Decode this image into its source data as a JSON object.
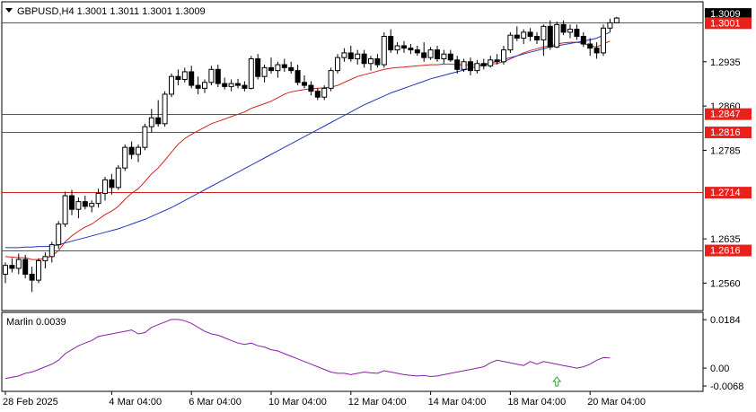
{
  "chart_data": {
    "type": "candlestick",
    "symbol_header": "GBPUSD,H4  1.3001  1.3011  1.3001  1.3009",
    "price_axis": {
      "range": [
        1.2515,
        1.3035
      ],
      "ticks": [
        "1.2935",
        "1.2860",
        "1.2785",
        "1.2635",
        "1.2560"
      ],
      "tick_values": [
        1.2935,
        1.286,
        1.2785,
        1.2635,
        1.256
      ],
      "current_price_label": "1.3009",
      "current_price": 1.3009
    },
    "levels": [
      {
        "label": "1.3001",
        "value": 1.3001
      },
      {
        "label": "1.2847",
        "value": 1.2847
      },
      {
        "label": "1.2816",
        "value": 1.2816
      },
      {
        "label": "1.2714",
        "value": 1.2714
      },
      {
        "label": "1.2616",
        "value": 1.2616
      }
    ],
    "x_axis_labels": [
      "28 Feb 2025",
      "4 Mar 04:00",
      "6 Mar 04:00",
      "10 Mar 04:00",
      "12 Mar 04:00",
      "14 Mar 04:00",
      "18 Mar 04:00",
      "20 Mar 04:00"
    ],
    "x_label_bar_index": [
      0,
      16,
      28,
      40,
      52,
      64,
      76,
      88
    ],
    "candles": [
      [
        1.2575,
        1.2595,
        1.256,
        1.259
      ],
      [
        1.259,
        1.2602,
        1.2578,
        1.2585
      ],
      [
        1.2585,
        1.261,
        1.2575,
        1.26
      ],
      [
        1.26,
        1.2608,
        1.2568,
        1.2575
      ],
      [
        1.2575,
        1.2588,
        1.2545,
        1.2565
      ],
      [
        1.2565,
        1.2602,
        1.256,
        1.2598
      ],
      [
        1.2598,
        1.2612,
        1.2585,
        1.2605
      ],
      [
        1.2605,
        1.263,
        1.2595,
        1.2625
      ],
      [
        1.2625,
        1.2665,
        1.2618,
        1.266
      ],
      [
        1.266,
        1.2715,
        1.2655,
        1.2708
      ],
      [
        1.2708,
        1.2718,
        1.2675,
        1.2685
      ],
      [
        1.2685,
        1.2705,
        1.267,
        1.2698
      ],
      [
        1.2698,
        1.2708,
        1.2685,
        1.269
      ],
      [
        1.269,
        1.27,
        1.268,
        1.2695
      ],
      [
        1.2695,
        1.272,
        1.2688,
        1.2712
      ],
      [
        1.2712,
        1.274,
        1.27,
        1.2735
      ],
      [
        1.2735,
        1.2745,
        1.271,
        1.2722
      ],
      [
        1.2722,
        1.276,
        1.2718,
        1.2755
      ],
      [
        1.2755,
        1.2795,
        1.275,
        1.279
      ],
      [
        1.279,
        1.28,
        1.277,
        1.2778
      ],
      [
        1.2778,
        1.2795,
        1.2765,
        1.279
      ],
      [
        1.279,
        1.283,
        1.2785,
        1.2825
      ],
      [
        1.2825,
        1.2855,
        1.2815,
        1.284
      ],
      [
        1.284,
        1.287,
        1.2825,
        1.283
      ],
      [
        1.283,
        1.2885,
        1.2825,
        1.288
      ],
      [
        1.288,
        1.2915,
        1.2875,
        1.291
      ],
      [
        1.291,
        1.2922,
        1.2895,
        1.2905
      ],
      [
        1.2905,
        1.2925,
        1.29,
        1.2918
      ],
      [
        1.2918,
        1.2928,
        1.289,
        1.2895
      ],
      [
        1.2895,
        1.291,
        1.288,
        1.289
      ],
      [
        1.289,
        1.2905,
        1.2882,
        1.29
      ],
      [
        1.29,
        1.2928,
        1.2895,
        1.2922
      ],
      [
        1.2922,
        1.293,
        1.2892,
        1.2898
      ],
      [
        1.2898,
        1.2908,
        1.2888,
        1.2893
      ],
      [
        1.2893,
        1.2905,
        1.2885,
        1.2898
      ],
      [
        1.2898,
        1.2906,
        1.289,
        1.2895
      ],
      [
        1.2895,
        1.2902,
        1.2885,
        1.289
      ],
      [
        1.289,
        1.2945,
        1.2888,
        1.294
      ],
      [
        1.294,
        1.2948,
        1.2905,
        1.291
      ],
      [
        1.291,
        1.293,
        1.29,
        1.2925
      ],
      [
        1.2925,
        1.2942,
        1.2915,
        1.292
      ],
      [
        1.292,
        1.2935,
        1.2908,
        1.293
      ],
      [
        1.293,
        1.294,
        1.2918,
        1.2925
      ],
      [
        1.2925,
        1.2935,
        1.2915,
        1.292
      ],
      [
        1.292,
        1.293,
        1.2895,
        1.29
      ],
      [
        1.29,
        1.2912,
        1.289,
        1.2895
      ],
      [
        1.2895,
        1.2902,
        1.2878,
        1.2885
      ],
      [
        1.2885,
        1.289,
        1.287,
        1.2875
      ],
      [
        1.2875,
        1.2895,
        1.287,
        1.289
      ],
      [
        1.289,
        1.2925,
        1.2885,
        1.292
      ],
      [
        1.292,
        1.2948,
        1.2915,
        1.2942
      ],
      [
        1.2942,
        1.2958,
        1.2935,
        1.295
      ],
      [
        1.295,
        1.2962,
        1.2935,
        1.294
      ],
      [
        1.294,
        1.2955,
        1.293,
        1.2948
      ],
      [
        1.2948,
        1.2955,
        1.2925,
        1.2932
      ],
      [
        1.2932,
        1.2945,
        1.292,
        1.294
      ],
      [
        1.294,
        1.2948,
        1.2925,
        1.293
      ],
      [
        1.293,
        1.2985,
        1.2925,
        1.2978
      ],
      [
        1.2978,
        1.299,
        1.295,
        1.2955
      ],
      [
        1.2955,
        1.2968,
        1.2948,
        1.2962
      ],
      [
        1.2962,
        1.297,
        1.295,
        1.2958
      ],
      [
        1.2958,
        1.2965,
        1.2948,
        1.2955
      ],
      [
        1.2955,
        1.2962,
        1.2945,
        1.295
      ],
      [
        1.295,
        1.2968,
        1.2935,
        1.2942
      ],
      [
        1.2942,
        1.296,
        1.2938,
        1.2955
      ],
      [
        1.2955,
        1.2962,
        1.2935,
        1.294
      ],
      [
        1.294,
        1.2955,
        1.2932,
        1.2948
      ],
      [
        1.2948,
        1.2955,
        1.2935,
        1.2938
      ],
      [
        1.2938,
        1.2945,
        1.2915,
        1.2922
      ],
      [
        1.2922,
        1.294,
        1.2918,
        1.2935
      ],
      [
        1.2935,
        1.2942,
        1.2912,
        1.292
      ],
      [
        1.292,
        1.2938,
        1.2915,
        1.2932
      ],
      [
        1.2932,
        1.294,
        1.2922,
        1.2928
      ],
      [
        1.2928,
        1.2945,
        1.2925,
        1.2938
      ],
      [
        1.2938,
        1.2948,
        1.293,
        1.2935
      ],
      [
        1.2935,
        1.2962,
        1.293,
        1.2955
      ],
      [
        1.2955,
        1.2985,
        1.295,
        1.298
      ],
      [
        1.298,
        1.2995,
        1.297,
        1.2975
      ],
      [
        1.2975,
        1.299,
        1.2965,
        1.2985
      ],
      [
        1.2985,
        1.2992,
        1.297,
        1.2978
      ],
      [
        1.2978,
        1.2985,
        1.2965,
        1.2972
      ],
      [
        1.2972,
        1.2998,
        1.2945,
        1.2995
      ],
      [
        1.2995,
        1.3005,
        1.2955,
        1.296
      ],
      [
        1.296,
        1.3003,
        1.2958,
        1.2998
      ],
      [
        1.2998,
        1.3005,
        1.298,
        1.2985
      ],
      [
        1.2985,
        1.2998,
        1.2975,
        1.299
      ],
      [
        1.299,
        1.2998,
        1.2972,
        1.2978
      ],
      [
        1.2978,
        1.2985,
        1.296,
        1.2965
      ],
      [
        1.2965,
        1.2975,
        1.2945,
        1.2958
      ],
      [
        1.2958,
        1.2968,
        1.294,
        1.295
      ],
      [
        1.295,
        1.2998,
        1.2945,
        1.2992
      ],
      [
        1.2992,
        1.3008,
        1.2985,
        1.3001
      ],
      [
        1.3001,
        1.3011,
        1.3001,
        1.3009
      ]
    ],
    "ma_fast": [
      1.2605,
      1.2604,
      1.2603,
      1.2603,
      1.26,
      1.26,
      1.2602,
      1.2606,
      1.2615,
      1.263,
      1.264,
      1.2648,
      1.2655,
      1.266,
      1.2668,
      1.2676,
      1.2682,
      1.269,
      1.2702,
      1.2712,
      1.272,
      1.2732,
      1.2745,
      1.2755,
      1.2768,
      1.2782,
      1.2795,
      1.2805,
      1.2812,
      1.2818,
      1.2824,
      1.283,
      1.2834,
      1.2838,
      1.2842,
      1.2846,
      1.285,
      1.2856,
      1.286,
      1.2864,
      1.2868,
      1.2874,
      1.288,
      1.2884,
      1.2886,
      1.2888,
      1.2889,
      1.289,
      1.2891,
      1.2892,
      1.2895,
      1.29,
      1.2905,
      1.291,
      1.2913,
      1.2916,
      1.2919,
      1.2922,
      1.2924,
      1.2925,
      1.2926,
      1.2927,
      1.2928,
      1.2929,
      1.293,
      1.293,
      1.2931,
      1.2931,
      1.293,
      1.293,
      1.293,
      1.293,
      1.293,
      1.2931,
      1.2932,
      1.2935,
      1.294,
      1.2945,
      1.295,
      1.2954,
      1.2957,
      1.296,
      1.2962,
      1.2965,
      1.2967,
      1.2968,
      1.2968,
      1.2966,
      1.2962,
      1.296,
      1.2965,
      1.297
    ],
    "ma_slow": [
      1.262,
      1.262,
      1.262,
      1.2621,
      1.2621,
      1.2622,
      1.2622,
      1.2623,
      1.2625,
      1.2628,
      1.2631,
      1.2634,
      1.2637,
      1.264,
      1.2643,
      1.2646,
      1.2649,
      1.2652,
      1.2656,
      1.266,
      1.2664,
      1.2668,
      1.2673,
      1.2678,
      1.2683,
      1.2688,
      1.2694,
      1.27,
      1.2706,
      1.2712,
      1.2718,
      1.2724,
      1.273,
      1.2736,
      1.2742,
      1.2748,
      1.2754,
      1.276,
      1.2766,
      1.2772,
      1.2778,
      1.2784,
      1.279,
      1.2796,
      1.2802,
      1.2808,
      1.2814,
      1.282,
      1.2826,
      1.2832,
      1.2838,
      1.2844,
      1.285,
      1.2856,
      1.2862,
      1.2867,
      1.2872,
      1.2877,
      1.2882,
      1.2886,
      1.289,
      1.2894,
      1.2898,
      1.2902,
      1.2906,
      1.2909,
      1.2912,
      1.2915,
      1.2918,
      1.2921,
      1.2924,
      1.2927,
      1.293,
      1.2933,
      1.2936,
      1.2939,
      1.2942,
      1.2945,
      1.2948,
      1.2951,
      1.2954,
      1.2957,
      1.296,
      1.2962,
      1.2964,
      1.2966,
      1.2968,
      1.297,
      1.2972,
      1.2975,
      1.298,
      1.2985
    ],
    "indicator": {
      "label": "Marlin 0.0039",
      "range": [
        -0.0085,
        0.0205
      ],
      "ticks": [
        "0.0184",
        "0.00",
        "-0.0068"
      ],
      "tick_values": [
        0.0184,
        0.0,
        -0.0068
      ],
      "arrow_at_bar": 83,
      "values": [
        -0.004,
        -0.0035,
        -0.003,
        -0.002,
        -0.0015,
        -0.0005,
        0.0005,
        0.0015,
        0.003,
        0.0055,
        0.007,
        0.0085,
        0.0095,
        0.0105,
        0.012,
        0.0125,
        0.013,
        0.0135,
        0.014,
        0.0145,
        0.013,
        0.0135,
        0.0155,
        0.0165,
        0.0175,
        0.0185,
        0.0185,
        0.018,
        0.017,
        0.0155,
        0.014,
        0.013,
        0.0125,
        0.0115,
        0.0105,
        0.0095,
        0.009,
        0.0095,
        0.0085,
        0.008,
        0.007,
        0.0065,
        0.0055,
        0.0045,
        0.0035,
        0.0025,
        0.0015,
        0.0005,
        -0.0005,
        -0.0015,
        -0.002,
        -0.002,
        -0.0025,
        -0.002,
        -0.0015,
        -0.0018,
        -0.002,
        -0.001,
        -0.0015,
        -0.002,
        -0.0025,
        -0.0028,
        -0.003,
        -0.0028,
        -0.0032,
        -0.003,
        -0.0025,
        -0.002,
        -0.0015,
        -0.001,
        -0.0005,
        0.0,
        0.0005,
        0.002,
        0.003,
        0.0025,
        0.002,
        0.0015,
        0.001,
        0.0025,
        0.0015,
        0.0025,
        0.002,
        0.0015,
        0.001,
        0.0005,
        0.0,
        0.0005,
        0.0015,
        0.003,
        0.004,
        0.0039
      ]
    },
    "colors": {
      "bull_candle": "#ffffff",
      "bear_candle": "#000000",
      "level_line": "#d42020",
      "level_label_bg": "#e8211d",
      "ma_fast": "#d42020",
      "ma_slow": "#2436c0",
      "indicator_line": "#8a1fa6",
      "arrow": "#2ca02c"
    }
  }
}
